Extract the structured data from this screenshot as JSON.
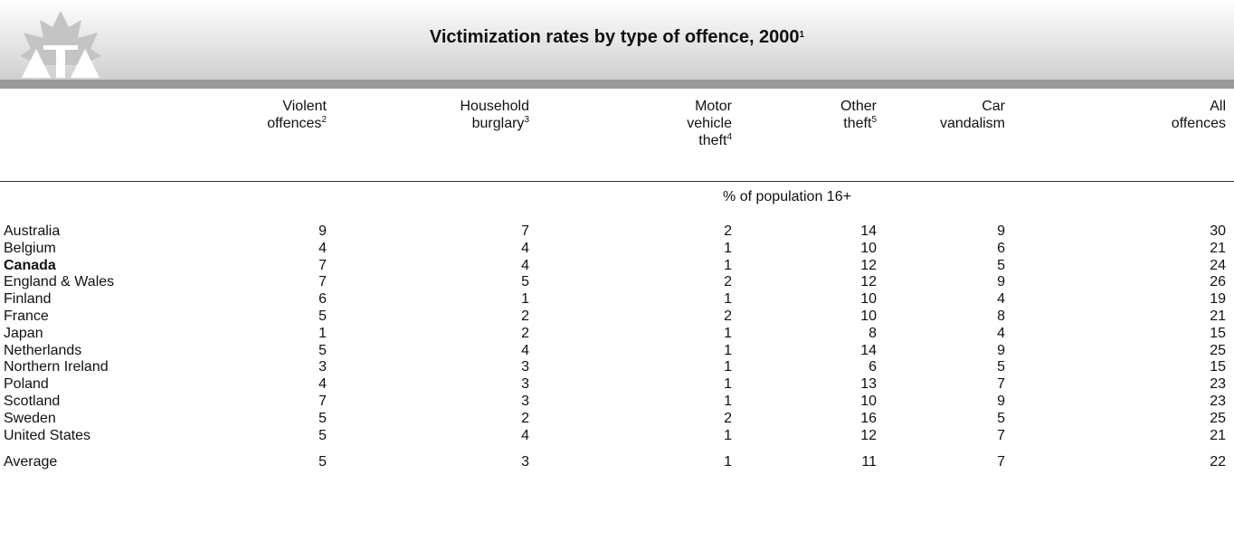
{
  "header": {
    "title": "Victimization rates by type of offence, 2000",
    "title_note": "1"
  },
  "table": {
    "stub_header": "",
    "columns": [
      {
        "lines": [
          "Violent",
          "offences"
        ],
        "note": "2"
      },
      {
        "lines": [
          "Household",
          "burglary"
        ],
        "note": "3"
      },
      {
        "lines": [
          "Motor",
          "vehicle",
          "theft"
        ],
        "note": "4"
      },
      {
        "lines": [
          "Other",
          "theft"
        ],
        "note": "5"
      },
      {
        "lines": [
          "Car",
          "vandalism"
        ],
        "note": ""
      },
      {
        "lines": [
          "All",
          "offences"
        ],
        "note": ""
      }
    ],
    "unit": "% of population 16+",
    "rows": [
      {
        "label": "Australia",
        "values": [
          "9",
          "7",
          "2",
          "14",
          "9",
          "30"
        ]
      },
      {
        "label": "Belgium",
        "values": [
          "4",
          "4",
          "1",
          "10",
          "6",
          "21"
        ]
      },
      {
        "label": "Canada",
        "values": [
          "7",
          "4",
          "1",
          "12",
          "5",
          "24"
        ],
        "bold": true
      },
      {
        "label": "England & Wales",
        "values": [
          "7",
          "5",
          "2",
          "12",
          "9",
          "26"
        ]
      },
      {
        "label": "Finland",
        "values": [
          "6",
          "1",
          "1",
          "10",
          "4",
          "19"
        ]
      },
      {
        "label": "France",
        "values": [
          "5",
          "2",
          "2",
          "10",
          "8",
          "21"
        ]
      },
      {
        "label": "Japan",
        "values": [
          "1",
          "2",
          "1",
          "8",
          "4",
          "15"
        ]
      },
      {
        "label": "Netherlands",
        "values": [
          "5",
          "4",
          "1",
          "14",
          "9",
          "25"
        ]
      },
      {
        "label": "Northern Ireland",
        "values": [
          "3",
          "3",
          "1",
          "6",
          "5",
          "15"
        ]
      },
      {
        "label": "Poland",
        "values": [
          "4",
          "3",
          "1",
          "13",
          "7",
          "23"
        ]
      },
      {
        "label": "Scotland",
        "values": [
          "7",
          "3",
          "1",
          "10",
          "9",
          "23"
        ]
      },
      {
        "label": "Sweden",
        "values": [
          "5",
          "2",
          "2",
          "16",
          "5",
          "25"
        ]
      },
      {
        "label": "United States",
        "values": [
          "5",
          "4",
          "1",
          "12",
          "7",
          "21"
        ]
      }
    ],
    "summary": {
      "label": "Average",
      "values": [
        "5",
        "3",
        "1",
        "11",
        "7",
        "22"
      ]
    }
  }
}
